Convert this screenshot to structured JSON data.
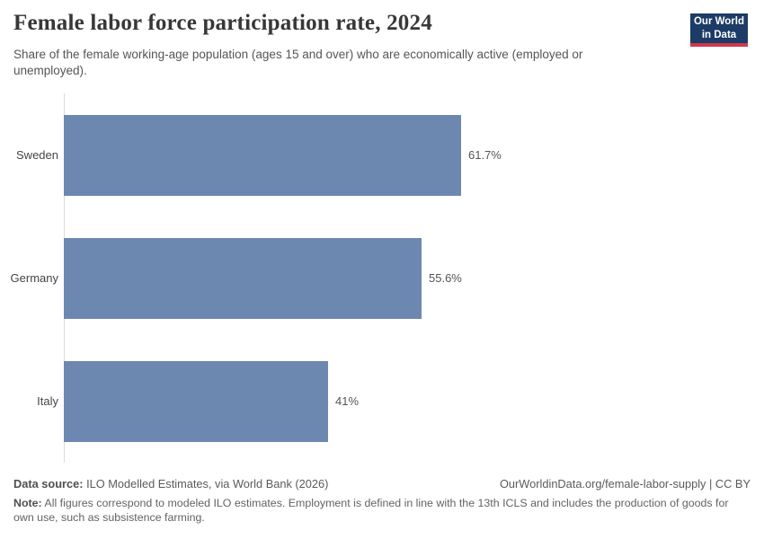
{
  "header": {
    "title": "Female labor force participation rate, 2024",
    "subtitle": "Share of the female working-age population (ages 15 and over) who are economically active (employed or unemployed).",
    "logo": {
      "line1": "Our World",
      "line2": "in Data"
    }
  },
  "chart_data": {
    "type": "bar",
    "orientation": "horizontal",
    "title": "Female labor force participation rate, 2024",
    "categories": [
      "Sweden",
      "Germany",
      "Italy"
    ],
    "values": [
      61.7,
      55.6,
      41
    ],
    "value_labels": [
      "61.7%",
      "55.6%",
      "41%"
    ],
    "unit": "%",
    "xlim": [
      0,
      100
    ],
    "grid": false,
    "legend": "none",
    "bar_color": "#6c88b1"
  },
  "footer": {
    "source_label": "Data source:",
    "source_text": " ILO Modelled Estimates, via World Bank (2026)",
    "link_text": "OurWorldinData.org/female-labor-supply | CC BY",
    "note_label": "Note:",
    "note_text": " All figures correspond to modeled ILO estimates. Employment is defined in line with the 13th ICLS and includes the production of goods for own use, such as subsistence farming."
  },
  "colors": {
    "bar": "#6c88b1",
    "axis_line": "#dcdcdc",
    "title_text": "#373737",
    "body_text": "#555555",
    "logo_navy": "#1c3b66",
    "logo_red": "#d0384a"
  }
}
